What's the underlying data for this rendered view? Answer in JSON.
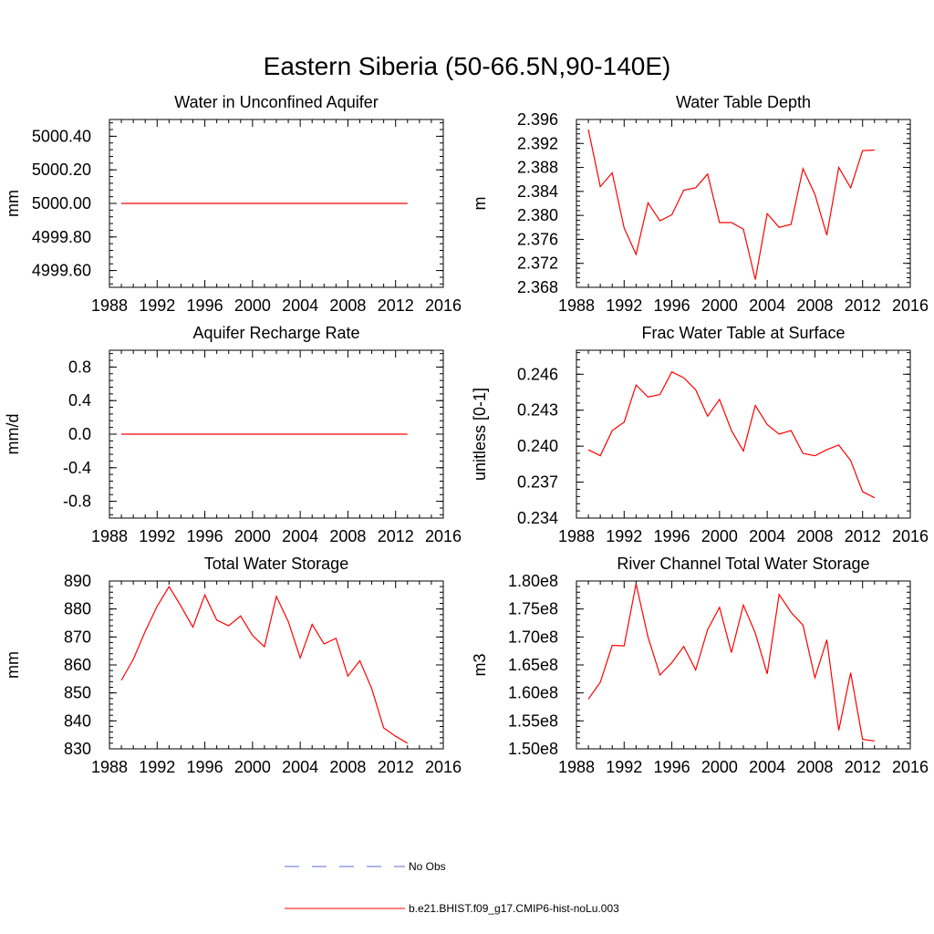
{
  "figure": {
    "title": "Eastern Siberia (50-66.5N,90-140E)"
  },
  "legend": {
    "items": [
      {
        "label": "No Obs",
        "color": "#5b6bd4",
        "style": "dashed"
      },
      {
        "label": "b.e21.BHIST.f09_g17.CMIP6-hist-noLu.003",
        "color": "#ff0000",
        "style": "solid"
      }
    ]
  },
  "chart_data": [
    {
      "type": "line",
      "title": "Water in Unconfined Aquifer",
      "ylabel": "mm",
      "xlim": [
        1988,
        2016
      ],
      "ylim": [
        4999.5,
        5000.5
      ],
      "xticks": [
        "1988",
        "1992",
        "1996",
        "2000",
        "2004",
        "2008",
        "2012",
        "2016"
      ],
      "yticks": [
        {
          "v": 4999.6,
          "label": "4999.60"
        },
        {
          "v": 4999.8,
          "label": "4999.80"
        },
        {
          "v": 5000.0,
          "label": "5000.00"
        },
        {
          "v": 5000.2,
          "label": "5000.20"
        },
        {
          "v": 5000.4,
          "label": "5000.40"
        }
      ],
      "x": [
        1989,
        1990,
        1991,
        1992,
        1993,
        1994,
        1995,
        1996,
        1997,
        1998,
        1999,
        2000,
        2001,
        2002,
        2003,
        2004,
        2005,
        2006,
        2007,
        2008,
        2009,
        2010,
        2011,
        2012,
        2013
      ],
      "series": [
        {
          "color": "#ff0000",
          "values": [
            5000,
            5000,
            5000,
            5000,
            5000,
            5000,
            5000,
            5000,
            5000,
            5000,
            5000,
            5000,
            5000,
            5000,
            5000,
            5000,
            5000,
            5000,
            5000,
            5000,
            5000,
            5000,
            5000,
            5000,
            5000
          ]
        }
      ]
    },
    {
      "type": "line",
      "title": "Water Table Depth",
      "ylabel": "m",
      "xlim": [
        1988,
        2016
      ],
      "ylim": [
        2.368,
        2.396
      ],
      "xticks": [
        "1988",
        "1992",
        "1996",
        "2000",
        "2004",
        "2008",
        "2012",
        "2016"
      ],
      "yticks": [
        {
          "v": 2.368,
          "label": "2.368"
        },
        {
          "v": 2.372,
          "label": "2.372"
        },
        {
          "v": 2.376,
          "label": "2.376"
        },
        {
          "v": 2.38,
          "label": "2.380"
        },
        {
          "v": 2.384,
          "label": "2.384"
        },
        {
          "v": 2.388,
          "label": "2.388"
        },
        {
          "v": 2.392,
          "label": "2.392"
        },
        {
          "v": 2.396,
          "label": "2.396"
        }
      ],
      "x": [
        1989,
        1990,
        1991,
        1992,
        1993,
        1994,
        1995,
        1996,
        1997,
        1998,
        1999,
        2000,
        2001,
        2002,
        2003,
        2004,
        2005,
        2006,
        2007,
        2008,
        2009,
        2010,
        2011,
        2012,
        2013
      ],
      "series": [
        {
          "color": "#ff0000",
          "values": [
            2.3943,
            2.3848,
            2.3871,
            2.3779,
            2.3735,
            2.3821,
            2.3791,
            2.3801,
            2.3842,
            2.3846,
            2.3869,
            2.3788,
            2.3788,
            2.3777,
            2.3693,
            2.3803,
            2.378,
            2.3785,
            2.3878,
            2.3835,
            2.3767,
            2.388,
            2.3846,
            2.3908,
            2.3909
          ]
        }
      ]
    },
    {
      "type": "line",
      "title": "Aquifer Recharge Rate",
      "ylabel": "mm/d",
      "xlim": [
        1988,
        2016
      ],
      "ylim": [
        -1.0,
        1.0
      ],
      "xticks": [
        "1988",
        "1992",
        "1996",
        "2000",
        "2004",
        "2008",
        "2012",
        "2016"
      ],
      "yticks": [
        {
          "v": -0.8,
          "label": "-0.8"
        },
        {
          "v": -0.4,
          "label": "-0.4"
        },
        {
          "v": 0.0,
          "label": "0.0"
        },
        {
          "v": 0.4,
          "label": "0.4"
        },
        {
          "v": 0.8,
          "label": "0.8"
        }
      ],
      "x": [
        1989,
        1990,
        1991,
        1992,
        1993,
        1994,
        1995,
        1996,
        1997,
        1998,
        1999,
        2000,
        2001,
        2002,
        2003,
        2004,
        2005,
        2006,
        2007,
        2008,
        2009,
        2010,
        2011,
        2012,
        2013
      ],
      "series": [
        {
          "color": "#ff0000",
          "values": [
            0,
            0,
            0,
            0,
            0,
            0,
            0,
            0,
            0,
            0,
            0,
            0,
            0,
            0,
            0,
            0,
            0,
            0,
            0,
            0,
            0,
            0,
            0,
            0,
            0
          ]
        }
      ]
    },
    {
      "type": "line",
      "title": "Frac Water Table at Surface",
      "ylabel": "unitless [0-1]",
      "xlim": [
        1988,
        2016
      ],
      "ylim": [
        0.234,
        0.248
      ],
      "xticks": [
        "1988",
        "1992",
        "1996",
        "2000",
        "2004",
        "2008",
        "2012",
        "2016"
      ],
      "yticks": [
        {
          "v": 0.234,
          "label": "0.234"
        },
        {
          "v": 0.237,
          "label": "0.237"
        },
        {
          "v": 0.24,
          "label": "0.240"
        },
        {
          "v": 0.243,
          "label": "0.243"
        },
        {
          "v": 0.246,
          "label": "0.246"
        }
      ],
      "x": [
        1989,
        1990,
        1991,
        1992,
        1993,
        1994,
        1995,
        1996,
        1997,
        1998,
        1999,
        2000,
        2001,
        2002,
        2003,
        2004,
        2005,
        2006,
        2007,
        2008,
        2009,
        2010,
        2011,
        2012,
        2013
      ],
      "series": [
        {
          "color": "#ff0000",
          "values": [
            0.2397,
            0.2392,
            0.2413,
            0.242,
            0.2451,
            0.2441,
            0.2443,
            0.2462,
            0.2457,
            0.2447,
            0.2425,
            0.2439,
            0.2413,
            0.2396,
            0.2434,
            0.2418,
            0.241,
            0.2413,
            0.2394,
            0.2392,
            0.2397,
            0.2401,
            0.2388,
            0.2362,
            0.2357
          ]
        }
      ]
    },
    {
      "type": "line",
      "title": "Total Water Storage",
      "ylabel": "mm",
      "xlim": [
        1988,
        2016
      ],
      "ylim": [
        830,
        890
      ],
      "xticks": [
        "1988",
        "1992",
        "1996",
        "2000",
        "2004",
        "2008",
        "2012",
        "2016"
      ],
      "yticks": [
        {
          "v": 830,
          "label": "830"
        },
        {
          "v": 840,
          "label": "840"
        },
        {
          "v": 850,
          "label": "850"
        },
        {
          "v": 860,
          "label": "860"
        },
        {
          "v": 870,
          "label": "870"
        },
        {
          "v": 880,
          "label": "880"
        },
        {
          "v": 890,
          "label": "890"
        }
      ],
      "x": [
        1989,
        1990,
        1991,
        1992,
        1993,
        1994,
        1995,
        1996,
        1997,
        1998,
        1999,
        2000,
        2001,
        2002,
        2003,
        2004,
        2005,
        2006,
        2007,
        2008,
        2009,
        2010,
        2011,
        2012,
        2013
      ],
      "series": [
        {
          "color": "#ff0000",
          "values": [
            854.5,
            862,
            872,
            881,
            888,
            881,
            873.5,
            885,
            876,
            874,
            877.5,
            870.5,
            866.5,
            884.5,
            875.5,
            862.5,
            874.5,
            867.5,
            869.5,
            856,
            861.5,
            851.5,
            837.5,
            834.5,
            832
          ]
        }
      ]
    },
    {
      "type": "line",
      "title": "River Channel Total Water Storage",
      "ylabel": "m3",
      "xlim": [
        1988,
        2016
      ],
      "ylim": [
        150000000.0,
        180000000.0
      ],
      "xticks": [
        "1988",
        "1992",
        "1996",
        "2000",
        "2004",
        "2008",
        "2012",
        "2016"
      ],
      "yticks": [
        {
          "v": 150000000.0,
          "label": "1.50e8"
        },
        {
          "v": 155000000.0,
          "label": "1.55e8"
        },
        {
          "v": 160000000.0,
          "label": "1.60e8"
        },
        {
          "v": 165000000.0,
          "label": "1.65e8"
        },
        {
          "v": 170000000.0,
          "label": "1.70e8"
        },
        {
          "v": 175000000.0,
          "label": "1.75e8"
        },
        {
          "v": 180000000.0,
          "label": "1.80e8"
        }
      ],
      "x": [
        1989,
        1990,
        1991,
        1992,
        1993,
        1994,
        1995,
        1996,
        1997,
        1998,
        1999,
        2000,
        2001,
        2002,
        2003,
        2004,
        2005,
        2006,
        2007,
        2008,
        2009,
        2010,
        2011,
        2012,
        2013
      ],
      "series": [
        {
          "color": "#ff0000",
          "values": [
            158900000.0,
            161900000.0,
            168500000.0,
            168400000.0,
            179500000.0,
            170000000.0,
            163200000.0,
            165400000.0,
            168300000.0,
            164100000.0,
            171300000.0,
            175300000.0,
            167200000.0,
            175700000.0,
            170700000.0,
            163400000.0,
            177600000.0,
            174400000.0,
            172100000.0,
            162700000.0,
            169500000.0,
            153300000.0,
            163600000.0,
            151700000.0,
            151400000.0
          ]
        }
      ]
    }
  ]
}
